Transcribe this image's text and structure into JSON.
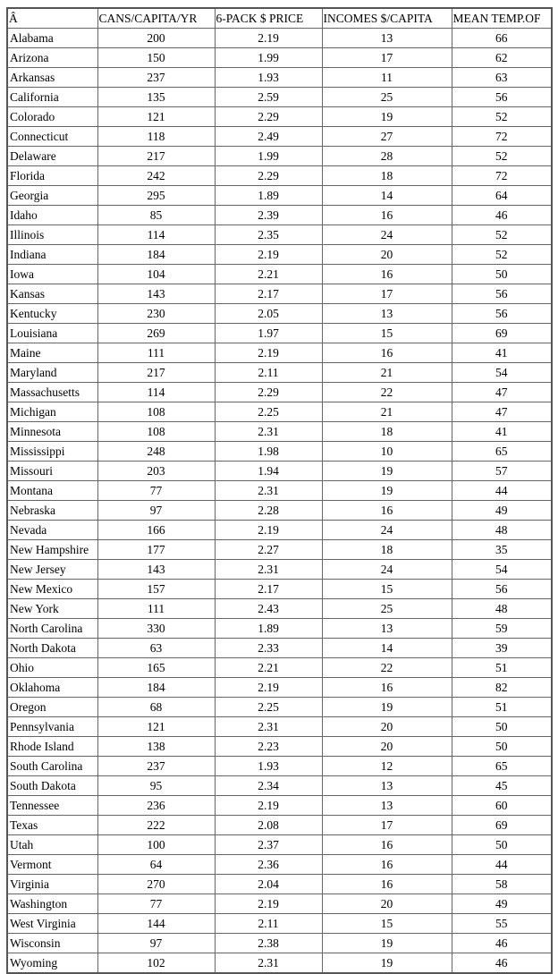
{
  "headers": [
    "Â",
    "CANS/CAPITA/YR",
    "6-PACK $ PRICE",
    "INCOMES $/CAPITA",
    "MEAN TEMP.OF"
  ],
  "rows": [
    [
      "Alabama",
      "200",
      "2.19",
      "13",
      "66"
    ],
    [
      "Arizona",
      "150",
      "1.99",
      "17",
      "62"
    ],
    [
      "Arkansas",
      "237",
      "1.93",
      "11",
      "63"
    ],
    [
      "California",
      "135",
      "2.59",
      "25",
      "56"
    ],
    [
      "Colorado",
      "121",
      "2.29",
      "19",
      "52"
    ],
    [
      "Connecticut",
      "118",
      "2.49",
      "27",
      "72"
    ],
    [
      "Delaware",
      "217",
      "1.99",
      "28",
      "52"
    ],
    [
      "Florida",
      "242",
      "2.29",
      "18",
      "72"
    ],
    [
      "Georgia",
      "295",
      "1.89",
      "14",
      "64"
    ],
    [
      "Idaho",
      "85",
      "2.39",
      "16",
      "46"
    ],
    [
      "Illinois",
      "114",
      "2.35",
      "24",
      "52"
    ],
    [
      "Indiana",
      "184",
      "2.19",
      "20",
      "52"
    ],
    [
      "Iowa",
      "104",
      "2.21",
      "16",
      "50"
    ],
    [
      "Kansas",
      "143",
      "2.17",
      "17",
      "56"
    ],
    [
      "Kentucky",
      "230",
      "2.05",
      "13",
      "56"
    ],
    [
      "Louisiana",
      "269",
      "1.97",
      "15",
      "69"
    ],
    [
      "Maine",
      "111",
      "2.19",
      "16",
      "41"
    ],
    [
      "Maryland",
      "217",
      "2.11",
      "21",
      "54"
    ],
    [
      "Massachusetts",
      "114",
      "2.29",
      "22",
      "47"
    ],
    [
      "Michigan",
      "108",
      "2.25",
      "21",
      "47"
    ],
    [
      "Minnesota",
      "108",
      "2.31",
      "18",
      "41"
    ],
    [
      "Mississippi",
      "248",
      "1.98",
      "10",
      "65"
    ],
    [
      "Missouri",
      "203",
      "1.94",
      "19",
      "57"
    ],
    [
      "Montana",
      "77",
      "2.31",
      "19",
      "44"
    ],
    [
      "Nebraska",
      "97",
      "2.28",
      "16",
      "49"
    ],
    [
      "Nevada",
      "166",
      "2.19",
      "24",
      "48"
    ],
    [
      "New Hampshire",
      "177",
      "2.27",
      "18",
      "35"
    ],
    [
      "New Jersey",
      "143",
      "2.31",
      "24",
      "54"
    ],
    [
      "New Mexico",
      "157",
      "2.17",
      "15",
      "56"
    ],
    [
      "New York",
      "111",
      "2.43",
      "25",
      "48"
    ],
    [
      "North Carolina",
      "330",
      "1.89",
      "13",
      "59"
    ],
    [
      "North Dakota",
      "63",
      "2.33",
      "14",
      "39"
    ],
    [
      "Ohio",
      "165",
      "2.21",
      "22",
      "51"
    ],
    [
      "Oklahoma",
      "184",
      "2.19",
      "16",
      "82"
    ],
    [
      "Oregon",
      "68",
      "2.25",
      "19",
      "51"
    ],
    [
      "Pennsylvania",
      "121",
      "2.31",
      "20",
      "50"
    ],
    [
      "Rhode Island",
      "138",
      "2.23",
      "20",
      "50"
    ],
    [
      "South Carolina",
      "237",
      "1.93",
      "12",
      "65"
    ],
    [
      "South Dakota",
      "95",
      "2.34",
      "13",
      "45"
    ],
    [
      "Tennessee",
      "236",
      "2.19",
      "13",
      "60"
    ],
    [
      "Texas",
      "222",
      "2.08",
      "17",
      "69"
    ],
    [
      "Utah",
      "100",
      "2.37",
      "16",
      "50"
    ],
    [
      "Vermont",
      "64",
      "2.36",
      "16",
      "44"
    ],
    [
      "Virginia",
      "270",
      "2.04",
      "16",
      "58"
    ],
    [
      "Washington",
      "77",
      "2.19",
      "20",
      "49"
    ],
    [
      "West Virginia",
      "144",
      "2.11",
      "15",
      "55"
    ],
    [
      "Wisconsin",
      "97",
      "2.38",
      "19",
      "46"
    ],
    [
      "Wyoming",
      "102",
      "2.31",
      "19",
      "46"
    ]
  ]
}
